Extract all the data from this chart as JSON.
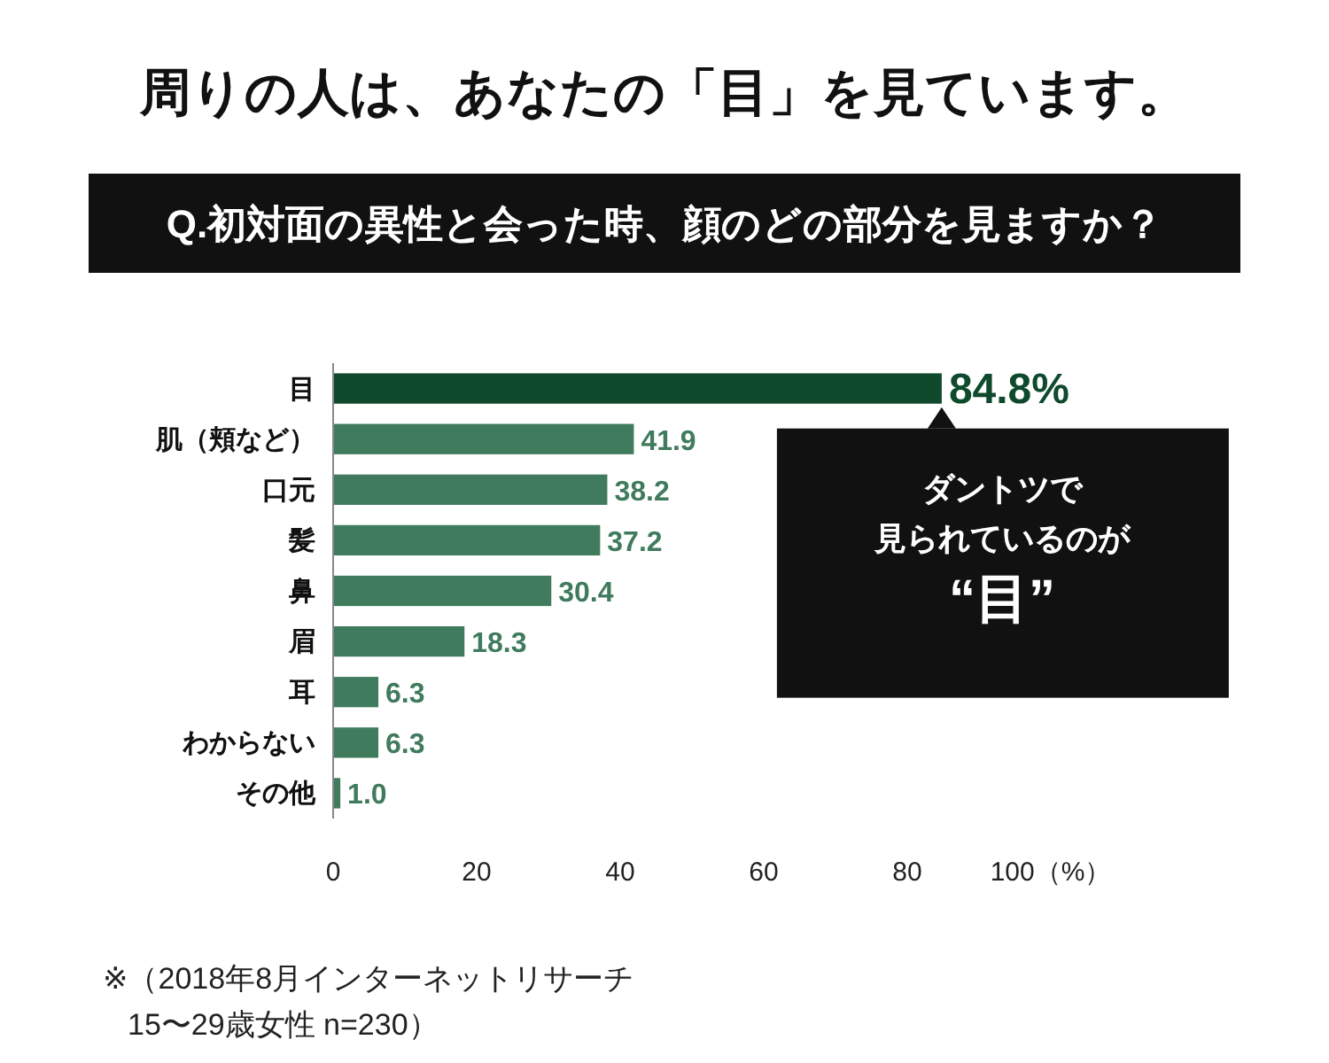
{
  "chart_data": {
    "type": "bar",
    "orientation": "horizontal",
    "title": "周りの人は、あなたの「目」を見ています。",
    "subtitle": "Q.初対面の異性と会った時、顔のどの部分を見ますか？",
    "categories": [
      "目",
      "肌（頬など）",
      "口元",
      "髪",
      "鼻",
      "眉",
      "耳",
      "わからない",
      "その他"
    ],
    "values": [
      84.8,
      41.9,
      38.2,
      37.2,
      30.4,
      18.3,
      6.3,
      6.3,
      1.0
    ],
    "value_labels": [
      "84.8%",
      "41.9",
      "38.2",
      "37.2",
      "30.4",
      "18.3",
      "6.3",
      "6.3",
      "1.0"
    ],
    "colors": [
      "#0f4a2c",
      "#3f7b5c",
      "#3f7b5c",
      "#3f7b5c",
      "#3f7b5c",
      "#3f7b5c",
      "#3f7b5c",
      "#3f7b5c",
      "#3f7b5c"
    ],
    "xlim": [
      0,
      100
    ],
    "xticks": [
      0,
      20,
      40,
      60,
      80,
      {
        "value": 100,
        "label": "100（%）"
      }
    ],
    "grid": false,
    "annotations": [
      {
        "text": "ダントツで",
        "x": 84.8,
        "y": "目"
      },
      "見られているのが",
      "“目”",
      "※（2018年8月インターネットリサーチ",
      "15〜29歳女性 n=230）"
    ]
  }
}
